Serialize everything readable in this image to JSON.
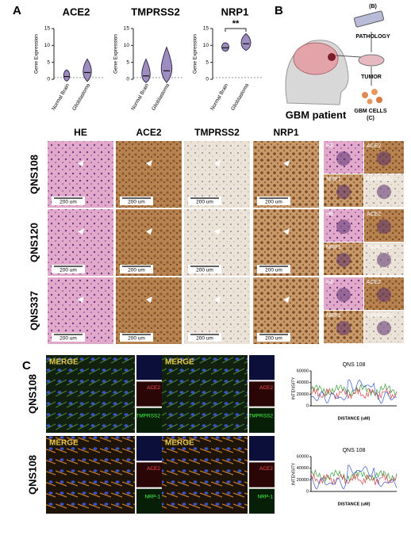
{
  "panel_labels": [
    "A",
    "B",
    "C"
  ],
  "panel_a": {
    "plots": [
      {
        "title": "ACE2",
        "y_label": "Gene Expression",
        "yticks": [
          0,
          5,
          10,
          15
        ],
        "categories": [
          "Normal Brain",
          "Glioblastoma"
        ]
      },
      {
        "title": "TMPRSS2",
        "y_label": "Gene Expression",
        "yticks": [
          0,
          5,
          10,
          15
        ],
        "categories": [
          "Normal Brain",
          "Glioblastoma"
        ]
      },
      {
        "title": "NRP1",
        "y_label": "Gene Expression",
        "yticks": [
          0,
          5,
          10,
          15
        ],
        "categories": [
          "Normal Brain",
          "Glioblastoma"
        ],
        "significance": "**"
      }
    ]
  },
  "panel_b": {
    "pathology_ref": "(B)",
    "pathology": "PATHOLOGY",
    "tumor": "TUMOR",
    "cells": "GBM CELLS",
    "cells_ref": "(C)",
    "patient": "GBM patient"
  },
  "histology": {
    "columns": [
      "HE",
      "ACE2",
      "TMPRSS2",
      "NRP1"
    ],
    "rows": [
      "QNS108",
      "QNS120",
      "QNS337"
    ],
    "scale_bar": "200 um",
    "inset_labels": [
      "HE",
      "ACE2",
      "NRP1",
      "TMPRSS2"
    ]
  },
  "panel_c": {
    "rows": [
      "QNS108",
      "QNS108"
    ],
    "merge": "MERGE",
    "channels": [
      [
        "ACE2",
        "TMPRSS2"
      ],
      [
        "ACE2",
        "NRP-1"
      ]
    ],
    "plots": [
      {
        "title": "QNS 108",
        "y_label": "INTENSITY",
        "x_label": "DISTANCE (uM)",
        "yticks": [
          0,
          20000,
          40000,
          60000
        ]
      },
      {
        "title": "QNS 108",
        "y_label": "INTENSITY",
        "x_label": "DISTANCE (uM)",
        "yticks": [
          0,
          20000,
          40000,
          60000
        ]
      }
    ]
  }
}
